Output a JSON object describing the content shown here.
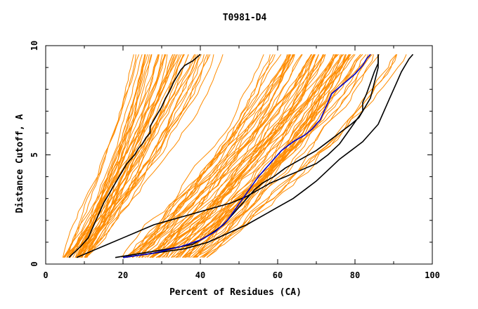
{
  "chart_data": {
    "type": "line",
    "title": "T0981-D4",
    "xlabel": "Percent of Residues (CA)",
    "ylabel": "Distance Cutoff, A",
    "xlim": [
      0,
      100
    ],
    "ylim": [
      0,
      10
    ],
    "x_ticks": [
      "0",
      "20",
      "40",
      "60",
      "80",
      "100"
    ],
    "y_ticks": [
      "0",
      "5",
      "10"
    ],
    "grid": false,
    "legend": "none",
    "colors": {
      "bundle": "#ff8c00",
      "highlight": "#000000",
      "target": "#0000cc"
    },
    "series": [
      {
        "style": "black",
        "x": [
          6,
          9,
          11,
          12,
          13,
          14,
          15,
          16,
          17,
          18,
          19,
          20,
          21,
          22,
          23,
          24,
          25,
          26,
          27,
          27,
          28,
          29,
          30,
          31,
          32,
          33,
          34,
          35,
          36,
          38,
          40
        ],
        "y": [
          0.3,
          0.8,
          1.2,
          1.6,
          2.0,
          2.4,
          2.8,
          3.1,
          3.4,
          3.7,
          4.0,
          4.3,
          4.6,
          4.8,
          5.0,
          5.3,
          5.5,
          5.8,
          6.0,
          6.3,
          6.6,
          6.9,
          7.2,
          7.6,
          7.9,
          8.3,
          8.6,
          8.9,
          9.1,
          9.3,
          9.6
        ]
      },
      {
        "style": "black",
        "x": [
          8,
          12,
          16,
          20,
          24,
          28,
          32,
          36,
          40,
          44,
          48,
          52,
          55,
          58,
          62,
          66,
          70,
          73,
          76,
          78,
          80,
          82,
          84,
          85,
          86,
          86
        ],
        "y": [
          0.3,
          0.6,
          0.9,
          1.2,
          1.5,
          1.8,
          2.0,
          2.2,
          2.4,
          2.6,
          2.8,
          3.1,
          3.4,
          3.7,
          4.0,
          4.3,
          4.6,
          5.0,
          5.5,
          6.0,
          6.5,
          7.0,
          7.6,
          8.3,
          9.0,
          9.6
        ]
      },
      {
        "style": "black",
        "x": [
          18,
          25,
          32,
          38,
          42,
          46,
          48,
          50,
          52,
          54,
          56,
          59,
          62,
          66,
          70,
          73,
          76,
          79,
          81,
          82,
          82,
          83,
          84,
          85,
          86,
          86
        ],
        "y": [
          0.3,
          0.5,
          0.7,
          0.9,
          1.3,
          1.8,
          2.2,
          2.6,
          3.0,
          3.4,
          3.7,
          4.0,
          4.4,
          4.8,
          5.2,
          5.6,
          6.0,
          6.4,
          6.7,
          7.0,
          7.4,
          7.8,
          8.3,
          8.8,
          9.2,
          9.6
        ]
      },
      {
        "style": "black",
        "x": [
          20,
          28,
          36,
          42,
          47,
          52,
          56,
          60,
          64,
          67,
          70,
          73,
          76,
          79,
          82,
          84,
          86,
          87,
          88,
          89,
          90,
          91,
          92,
          93,
          94,
          95
        ],
        "y": [
          0.3,
          0.5,
          0.7,
          1.0,
          1.4,
          1.8,
          2.2,
          2.6,
          3.0,
          3.4,
          3.8,
          4.3,
          4.8,
          5.2,
          5.6,
          6.0,
          6.4,
          6.8,
          7.2,
          7.6,
          8.0,
          8.4,
          8.8,
          9.1,
          9.4,
          9.6
        ]
      },
      {
        "style": "blue",
        "x": [
          20,
          28,
          35,
          40,
          44,
          47,
          49,
          51,
          53,
          55,
          57,
          59,
          61,
          64,
          67,
          69,
          71,
          72,
          73,
          74,
          76,
          78,
          80,
          81,
          82,
          83,
          84
        ],
        "y": [
          0.3,
          0.5,
          0.8,
          1.1,
          1.5,
          2.0,
          2.5,
          3.0,
          3.5,
          4.0,
          4.4,
          4.8,
          5.2,
          5.6,
          5.9,
          6.2,
          6.6,
          7.0,
          7.4,
          7.8,
          8.1,
          8.4,
          8.7,
          8.9,
          9.1,
          9.4,
          9.6
        ]
      }
    ]
  }
}
